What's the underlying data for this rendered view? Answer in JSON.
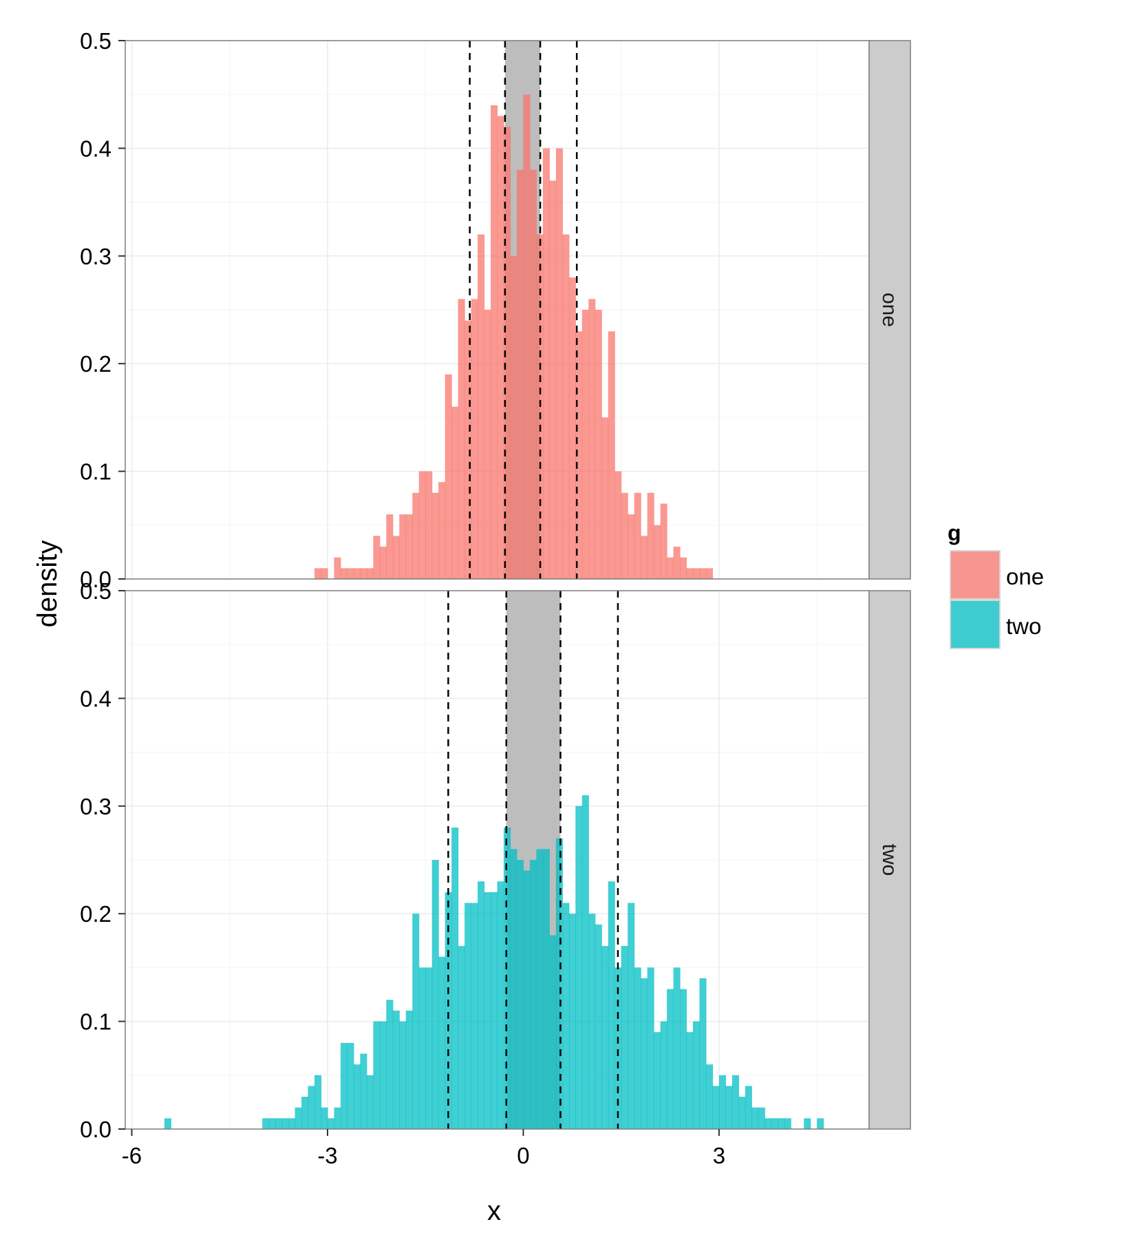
{
  "chart_data": {
    "type": "bar",
    "subtype": "faceted-histogram",
    "title": "",
    "xlabel": "x",
    "ylabel": "density",
    "xlim": [
      -6.1,
      5.3
    ],
    "ylim": [
      0,
      0.5
    ],
    "xticks": [
      -6,
      -3,
      0,
      3
    ],
    "xtick_labels": [
      "-6",
      "-3",
      "0",
      "3"
    ],
    "yticks": [
      0.0,
      0.1,
      0.2,
      0.3,
      0.4,
      0.5
    ],
    "ytick_labels": [
      "0.0",
      "0.1",
      "0.2",
      "0.3",
      "0.4",
      "0.5"
    ],
    "grid": true,
    "bin_width": 0.1,
    "legend": {
      "title": "g",
      "position": "right",
      "entries": [
        {
          "label": "one",
          "color": "#f8766d"
        },
        {
          "label": "two",
          "color": "#00bfc4"
        }
      ]
    },
    "colors": {
      "one": "#f8766d",
      "two": "#00bfc4",
      "band": "#bdbdbd",
      "strip": "#cccccc",
      "grid": "#ebebeb",
      "vline": "#000000"
    },
    "series": [
      {
        "name": "one",
        "strip_label": "one",
        "shaded_band": [
          -0.28,
          0.26
        ],
        "dashed_lines": [
          -0.82,
          -0.28,
          0.26,
          0.82
        ],
        "bins": [
          [
            -3.2,
            0.01
          ],
          [
            -3.1,
            0.01
          ],
          [
            -2.9,
            0.02
          ],
          [
            -2.8,
            0.01
          ],
          [
            -2.7,
            0.01
          ],
          [
            -2.6,
            0.01
          ],
          [
            -2.5,
            0.01
          ],
          [
            -2.4,
            0.01
          ],
          [
            -2.3,
            0.04
          ],
          [
            -2.2,
            0.03
          ],
          [
            -2.1,
            0.06
          ],
          [
            -2.0,
            0.04
          ],
          [
            -1.9,
            0.06
          ],
          [
            -1.8,
            0.06
          ],
          [
            -1.7,
            0.08
          ],
          [
            -1.6,
            0.1
          ],
          [
            -1.5,
            0.1
          ],
          [
            -1.4,
            0.08
          ],
          [
            -1.3,
            0.09
          ],
          [
            -1.2,
            0.19
          ],
          [
            -1.1,
            0.16
          ],
          [
            -1.0,
            0.26
          ],
          [
            -0.9,
            0.24
          ],
          [
            -0.8,
            0.26
          ],
          [
            -0.7,
            0.32
          ],
          [
            -0.6,
            0.25
          ],
          [
            -0.5,
            0.44
          ],
          [
            -0.4,
            0.43
          ],
          [
            -0.3,
            0.42
          ],
          [
            -0.2,
            0.3
          ],
          [
            -0.1,
            0.38
          ],
          [
            0.0,
            0.45
          ],
          [
            0.1,
            0.38
          ],
          [
            0.2,
            0.32
          ],
          [
            0.3,
            0.4
          ],
          [
            0.4,
            0.37
          ],
          [
            0.5,
            0.4
          ],
          [
            0.6,
            0.32
          ],
          [
            0.7,
            0.28
          ],
          [
            0.8,
            0.23
          ],
          [
            0.9,
            0.25
          ],
          [
            1.0,
            0.26
          ],
          [
            1.1,
            0.25
          ],
          [
            1.2,
            0.15
          ],
          [
            1.3,
            0.23
          ],
          [
            1.4,
            0.1
          ],
          [
            1.5,
            0.08
          ],
          [
            1.6,
            0.06
          ],
          [
            1.7,
            0.08
          ],
          [
            1.8,
            0.04
          ],
          [
            1.9,
            0.08
          ],
          [
            2.0,
            0.05
          ],
          [
            2.1,
            0.07
          ],
          [
            2.2,
            0.02
          ],
          [
            2.3,
            0.03
          ],
          [
            2.4,
            0.02
          ],
          [
            2.5,
            0.01
          ],
          [
            2.6,
            0.01
          ],
          [
            2.7,
            0.01
          ],
          [
            2.8,
            0.01
          ]
        ]
      },
      {
        "name": "two",
        "strip_label": "two",
        "shaded_band": [
          -0.26,
          0.57
        ],
        "dashed_lines": [
          -1.15,
          -0.26,
          0.57,
          1.45
        ],
        "bins": [
          [
            -5.5,
            0.01
          ],
          [
            -4.0,
            0.01
          ],
          [
            -3.9,
            0.01
          ],
          [
            -3.8,
            0.01
          ],
          [
            -3.7,
            0.01
          ],
          [
            -3.6,
            0.01
          ],
          [
            -3.5,
            0.02
          ],
          [
            -3.4,
            0.03
          ],
          [
            -3.3,
            0.04
          ],
          [
            -3.2,
            0.05
          ],
          [
            -3.1,
            0.02
          ],
          [
            -3.0,
            0.01
          ],
          [
            -2.9,
            0.02
          ],
          [
            -2.8,
            0.08
          ],
          [
            -2.7,
            0.08
          ],
          [
            -2.6,
            0.06
          ],
          [
            -2.5,
            0.07
          ],
          [
            -2.4,
            0.05
          ],
          [
            -2.3,
            0.1
          ],
          [
            -2.2,
            0.1
          ],
          [
            -2.1,
            0.12
          ],
          [
            -2.0,
            0.11
          ],
          [
            -1.9,
            0.1
          ],
          [
            -1.8,
            0.11
          ],
          [
            -1.7,
            0.2
          ],
          [
            -1.6,
            0.15
          ],
          [
            -1.5,
            0.15
          ],
          [
            -1.4,
            0.25
          ],
          [
            -1.3,
            0.16
          ],
          [
            -1.2,
            0.22
          ],
          [
            -1.1,
            0.28
          ],
          [
            -1.0,
            0.17
          ],
          [
            -0.9,
            0.21
          ],
          [
            -0.8,
            0.21
          ],
          [
            -0.7,
            0.23
          ],
          [
            -0.6,
            0.22
          ],
          [
            -0.5,
            0.22
          ],
          [
            -0.4,
            0.23
          ],
          [
            -0.3,
            0.28
          ],
          [
            -0.2,
            0.26
          ],
          [
            -0.1,
            0.25
          ],
          [
            0.0,
            0.24
          ],
          [
            0.1,
            0.25
          ],
          [
            0.2,
            0.26
          ],
          [
            0.3,
            0.26
          ],
          [
            0.4,
            0.18
          ],
          [
            0.5,
            0.27
          ],
          [
            0.6,
            0.21
          ],
          [
            0.7,
            0.2
          ],
          [
            0.8,
            0.3
          ],
          [
            0.9,
            0.31
          ],
          [
            1.0,
            0.2
          ],
          [
            1.1,
            0.19
          ],
          [
            1.2,
            0.17
          ],
          [
            1.3,
            0.23
          ],
          [
            1.4,
            0.15
          ],
          [
            1.5,
            0.17
          ],
          [
            1.6,
            0.21
          ],
          [
            1.7,
            0.15
          ],
          [
            1.8,
            0.14
          ],
          [
            1.9,
            0.15
          ],
          [
            2.0,
            0.09
          ],
          [
            2.1,
            0.1
          ],
          [
            2.2,
            0.13
          ],
          [
            2.3,
            0.15
          ],
          [
            2.4,
            0.13
          ],
          [
            2.5,
            0.09
          ],
          [
            2.6,
            0.1
          ],
          [
            2.7,
            0.14
          ],
          [
            2.8,
            0.06
          ],
          [
            2.9,
            0.04
          ],
          [
            3.0,
            0.05
          ],
          [
            3.1,
            0.04
          ],
          [
            3.2,
            0.05
          ],
          [
            3.3,
            0.03
          ],
          [
            3.4,
            0.04
          ],
          [
            3.5,
            0.02
          ],
          [
            3.6,
            0.02
          ],
          [
            3.7,
            0.01
          ],
          [
            3.8,
            0.01
          ],
          [
            3.9,
            0.01
          ],
          [
            4.0,
            0.01
          ],
          [
            4.3,
            0.01
          ],
          [
            4.5,
            0.01
          ]
        ]
      }
    ]
  }
}
